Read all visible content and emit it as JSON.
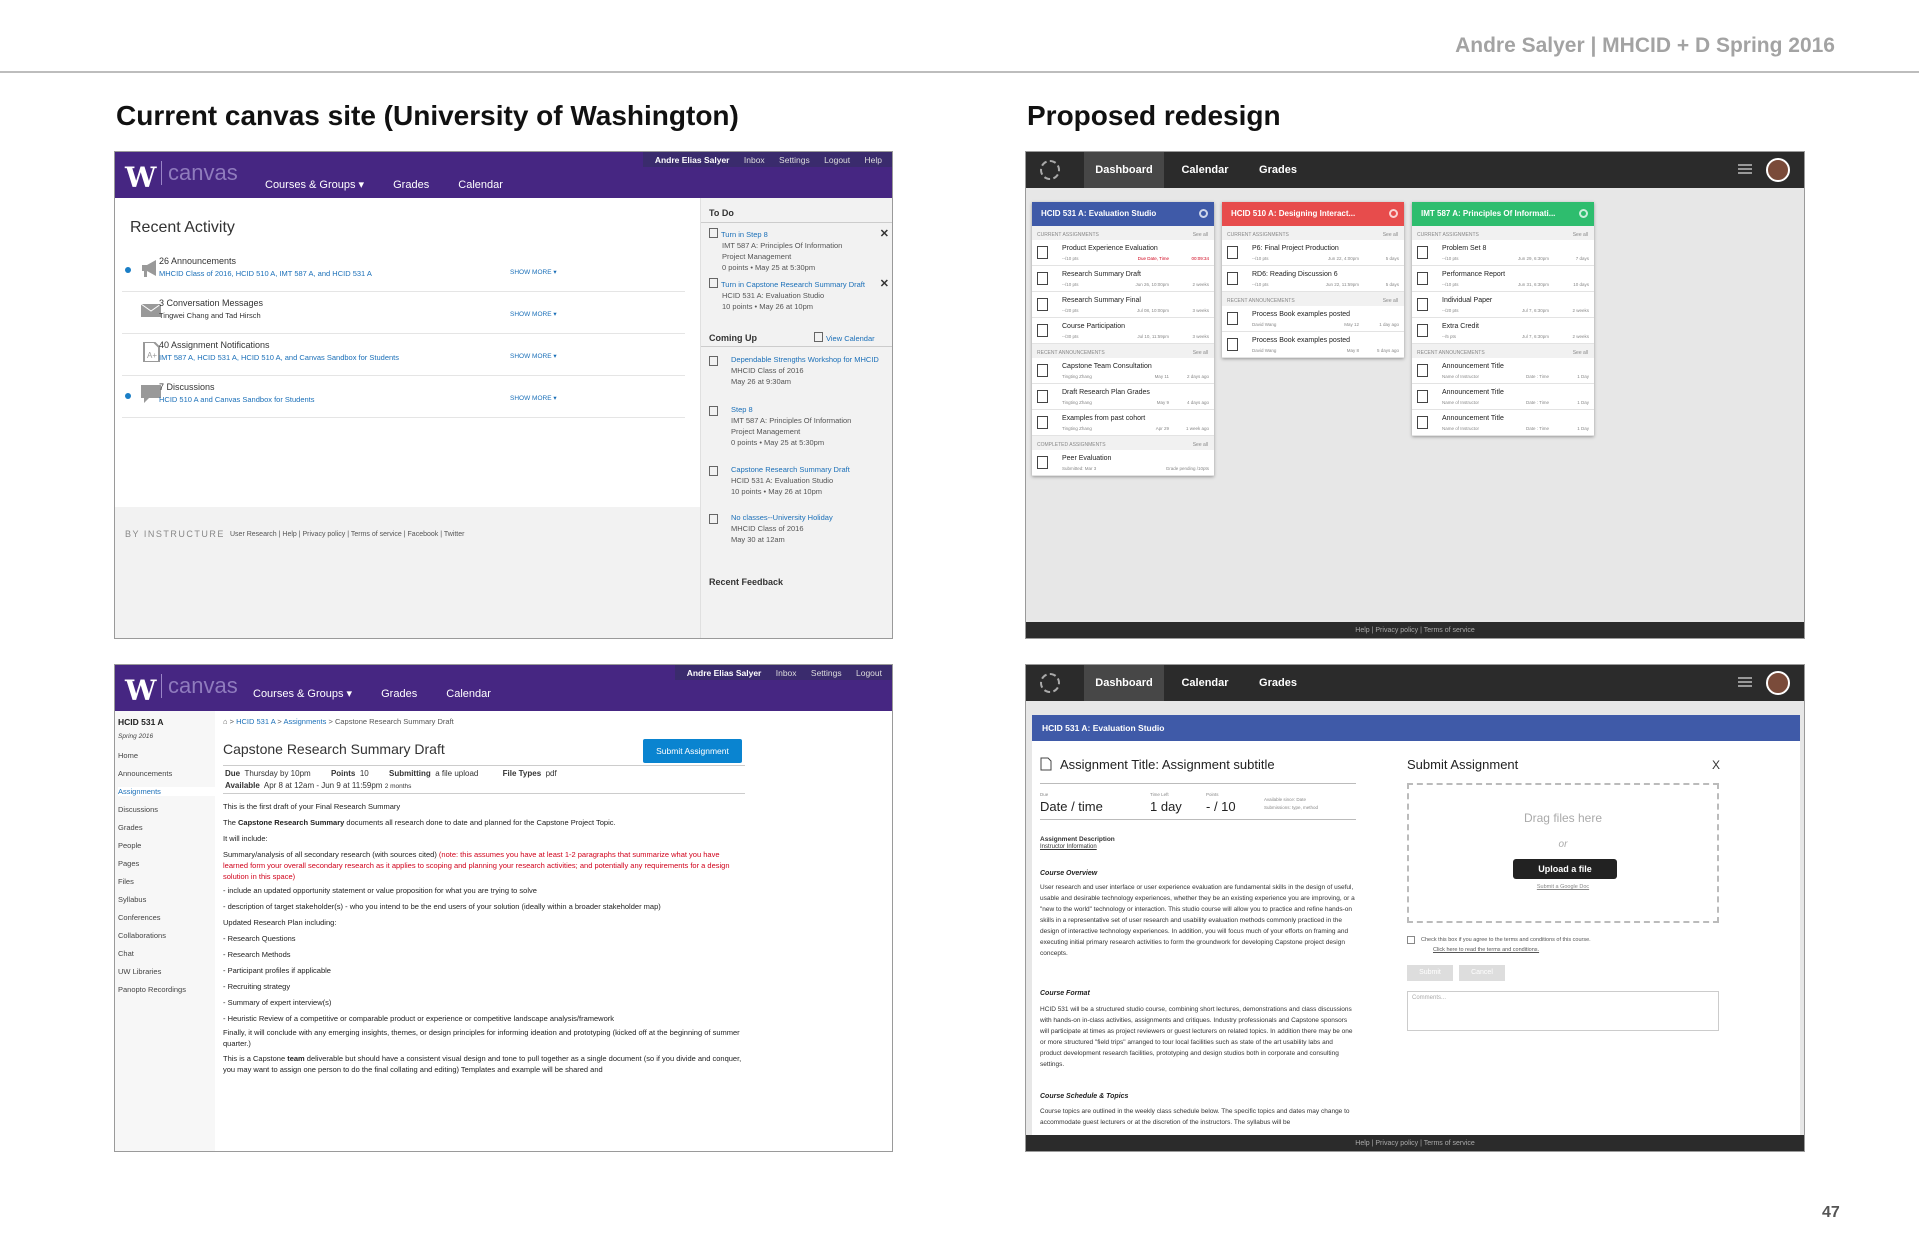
{
  "slide": {
    "author": "Andre Salyer | MHCID + D Spring 2016",
    "left_title": "Current canvas site (University of Washington)",
    "right_title": "Proposed redesign",
    "page_number": "47"
  },
  "canvas": {
    "logo": "W",
    "brand": "canvas",
    "user": "Andre Elias Salyer",
    "util1": [
      "Inbox",
      "Settings",
      "Logout",
      "Help"
    ],
    "util2": [
      "Inbox",
      "Settings",
      "Logout"
    ],
    "nav": [
      "Courses & Groups ▾",
      "Grades",
      "Calendar"
    ]
  },
  "dash": {
    "recent_title": "Recent Activity",
    "activities": [
      {
        "head": "26 Announcements",
        "sub": "MHCID Class of 2016, HCID 510 A, IMT 587 A, and HCID 531 A",
        "more": "SHOW MORE ▾"
      },
      {
        "head": "3 Conversation Messages",
        "sub": "Tingwei Chang and Tad Hirsch",
        "more": "SHOW MORE ▾"
      },
      {
        "head": "40 Assignment Notifications",
        "sub": "IMT 587 A, HCID 531 A, HCID 510 A, and Canvas Sandbox for Students",
        "more": "SHOW MORE ▾"
      },
      {
        "head": "7 Discussions",
        "sub": "HCID 510 A and Canvas Sandbox for Students",
        "more": "SHOW MORE ▾"
      }
    ],
    "footer_brand": "BY INSTRUCTURE",
    "footer_links": "User Research | Help | Privacy policy | Terms of service | Facebook | Twitter",
    "todo_title": "To Do",
    "todo": [
      {
        "link": "Turn in Step 8",
        "l1": "IMT 587 A: Principles Of Information",
        "l2": "Project Management",
        "l3": "0 points • May 25 at 5:30pm"
      },
      {
        "link": "Turn in Capstone Research Summary Draft",
        "l1": "HCID 531 A: Evaluation Studio",
        "l2": "10 points • May 26 at 10pm",
        "l3": ""
      }
    ],
    "coming_title": "Coming Up",
    "view_calendar": "View Calendar",
    "coming": [
      {
        "link": "Dependable Strengths Workshop for MHCID",
        "l1": "MHCID Class of 2016",
        "l2": "May 26 at 9:30am",
        "l3": ""
      },
      {
        "link": "Step 8",
        "l1": "IMT 587 A: Principles Of Information",
        "l2": "Project Management",
        "l3": "0 points • May 25 at 5:30pm"
      },
      {
        "link": "Capstone Research Summary Draft",
        "l1": "HCID 531 A: Evaluation Studio",
        "l2": "10 points • May 26 at 10pm",
        "l3": ""
      },
      {
        "link": "No classes--University Holiday",
        "l1": "MHCID Class of 2016",
        "l2": "May 30 at 12am",
        "l3": ""
      }
    ],
    "recent_feedback": "Recent Feedback"
  },
  "assignment": {
    "sidebar": [
      "HCID 531 A",
      "Spring 2016",
      "Home",
      "Announcements",
      "Assignments",
      "Discussions",
      "Grades",
      "People",
      "Pages",
      "Files",
      "Syllabus",
      "Conferences",
      "Collaborations",
      "Chat",
      "UW Libraries",
      "Panopto Recordings"
    ],
    "breadcrumb": [
      "HCID 531 A",
      "Assignments",
      "Capstone Research Summary Draft"
    ],
    "title": "Capstone Research Summary Draft",
    "submit": "Submit Assignment",
    "due_label": "Due",
    "due": "Thursday by 10pm",
    "points_label": "Points",
    "points": "10",
    "submitting_label": "Submitting",
    "submitting": "a file upload",
    "filetypes_label": "File Types",
    "filetypes": "pdf",
    "available_label": "Available",
    "available": "Apr 8 at 12am - Jun 9 at 11:59pm",
    "available_suffix": "2 months",
    "p1": "This is the first draft of your Final Research Summary",
    "p2a": "The ",
    "p2b": "Capstone Research Summary",
    "p2c": " documents all research done to date and planned for the Capstone Project Topic.",
    "p3": "It will include:",
    "p4a": "Summary/analysis of all secondary research (with sources cited) ",
    "p4b": "(note: this assumes you have at least 1-2 paragraphs that summarize what you have learned form your overall secondary research as it applies to scoping and planning your research activities; and potentially any requirements for a design solution in this space)",
    "p5": "- include an updated opportunity statement or value proposition for what you are trying to solve",
    "p6": "- description of target stakeholder(s) - who you intend to be the end users of your solution (ideally within a broader stakeholder map)",
    "p7": "Updated Research Plan including:",
    "list": [
      "- Research Questions",
      "- Research Methods",
      "- Participant profiles if applicable",
      "- Recruiting strategy",
      "- Summary of  expert interview(s)",
      "- Heuristic Review of a competitive or comparable product or experience or competitive landscape analysis/framework"
    ],
    "p8": "Finally, it will conclude with any emerging insights, themes, or design principles for informing ideation and prototyping (kicked off at the beginning of summer quarter.)",
    "p9a": "This is a Capstone ",
    "p9b": "team",
    "p9c": " deliverable but should have a consistent visual design and tone to pull together as a single document (so if you divide and conquer, you may want to assign one person to do the final collating and editing) Templates and example will be shared and"
  },
  "redesign": {
    "tabs": [
      "Dashboard",
      "Calendar",
      "Grades"
    ],
    "footer": "Help  |  Privacy policy  |  Terms of service",
    "cards": [
      {
        "title": "HCID 531 A: Evaluation Studio",
        "color": "#3f5aa8",
        "sections": [
          {
            "name": "CURRENT ASSIGNMENTS",
            "see": "See all",
            "rows": [
              {
                "t": "Product Experience Evaluation",
                "m": "--/10 pts",
                "d": "Due Date, Time",
                "r": "00:09:34",
                "red": true
              },
              {
                "t": "Research Summary Draft",
                "m": "--/10 pts",
                "d": "Jun 26, 10:00pm",
                "r": "2 weeks",
                "red": false
              },
              {
                "t": "Research Summary Final",
                "m": "--/20 pts",
                "d": "Jul 08, 10:00pm",
                "r": "3 weeks",
                "red": false
              },
              {
                "t": "Course Participation",
                "m": "--/30 pts",
                "d": "Jul 10, 11:59pm",
                "r": "3 weeks",
                "red": false
              }
            ]
          },
          {
            "name": "RECENT ANNOUNCEMENTS",
            "see": "See all",
            "rows": [
              {
                "t": "Capstone Team Consultation",
                "m": "Tingting Zhang",
                "d": "May 11",
                "r": "2 days ago",
                "red": false
              },
              {
                "t": "Draft Research Plan Grades",
                "m": "Tingting Zhang",
                "d": "May 9",
                "r": "4 days ago",
                "red": false
              },
              {
                "t": "Examples from past cohort",
                "m": "Tingting Zhang",
                "d": "Apr 29",
                "r": "1 week ago",
                "red": false
              }
            ]
          },
          {
            "name": "COMPLETED ASSIGNMENTS",
            "see": "See all",
            "rows": [
              {
                "t": "Peer Evaluation",
                "m": "Submitted: Mar 3",
                "d": "",
                "r": "Grade pending /10pts",
                "red": false
              }
            ]
          }
        ]
      },
      {
        "title": "HCID 510 A: Designing Interact...",
        "color": "#e74c4c",
        "sections": [
          {
            "name": "CURRENT ASSIGNMENTS",
            "see": "See all",
            "rows": [
              {
                "t": "P6: Final Project Production",
                "m": "--/10 pts",
                "d": "Jun 22, 4:00pm",
                "r": "5 days",
                "red": false
              },
              {
                "t": "RD6: Reading Discussion 6",
                "m": "--/10 pts",
                "d": "Jun 22, 11:59pm",
                "r": "5 days",
                "red": false
              }
            ]
          },
          {
            "name": "RECENT ANNOUNCEMENTS",
            "see": "See all",
            "rows": [
              {
                "t": "Process Book examples posted",
                "m": "David Wang",
                "d": "May 12",
                "r": "1 day ago",
                "red": false
              },
              {
                "t": "Process Book examples posted",
                "m": "David Wang",
                "d": "May 8",
                "r": "5 days ago",
                "red": false
              }
            ]
          }
        ]
      },
      {
        "title": "IMT 587 A: Principles Of Informati...",
        "color": "#2ebd6e",
        "sections": [
          {
            "name": "CURRENT ASSIGNMENTS",
            "see": "See all",
            "rows": [
              {
                "t": "Problem Set 8",
                "m": "--/10 pts",
                "d": "Jun 29, 6:30pm",
                "r": "7 days",
                "red": false
              },
              {
                "t": "Performance Report",
                "m": "--/10 pts",
                "d": "Jun 31, 6:30pm",
                "r": "10 days",
                "red": false
              },
              {
                "t": "Individual Paper",
                "m": "--/20 pts",
                "d": "Jul 7, 6:30pm",
                "r": "2 weeks",
                "red": false
              },
              {
                "t": "Extra Credit",
                "m": "--/5 pts",
                "d": "Jul 7, 6:30pm",
                "r": "2 weeks",
                "red": false
              }
            ]
          },
          {
            "name": "RECENT ANNOUNCEMENTS",
            "see": "See all",
            "rows": [
              {
                "t": "Announcement Title",
                "m": "Name of Instructor",
                "d": "Date : Time",
                "r": "1 Day",
                "red": false
              },
              {
                "t": "Announcement Title",
                "m": "Name of Instructor",
                "d": "Date : Time",
                "r": "1 Day",
                "red": false
              },
              {
                "t": "Announcement Title",
                "m": "Name of Instructor",
                "d": "Date : Time",
                "r": "1 Day",
                "red": false
              }
            ]
          }
        ]
      }
    ],
    "detail": {
      "course": "HCID 531 A: Evaluation Studio",
      "title": "Assignment Title: Assignment subtitle",
      "due_lbl": "Due",
      "due": "Date / time",
      "left_lbl": "Time Left",
      "left": "1 day",
      "pts_lbl": "Points",
      "pts": "- / 10",
      "avail": "Available since: Date",
      "subs": "Submissions: type, method",
      "desc_lbl": "Assignment Description",
      "instructor": "Instructor Information",
      "overview_h": "Course Overview",
      "overview": "User research and user interface or user experience evaluation are fundamental skills in the design of useful, usable and desirable technology experiences, whether they be an existing experience you are improving, or a \"new to the world\" technology or interaction. This studio course will allow you to practice and refine hands-on skills in a representative set of user research and usability evaluation methods commonly practiced in the design of interactive technology experiences. In addition, you will focus much of your efforts on framing and executing initial primary research activities to form the groundwork for developing Capstone project design concepts.",
      "format_h": "Course Format",
      "format": "HCID 531 will be a structured studio course, combining short lectures, demonstrations and class discussions with hands-on in-class activities, assignments and critiques. Industry professionals and Capstone sponsors will participate at times as project reviewers or guest lecturers on related topics. In addition there may be one or more structured \"field trips\" arranged to tour local facilities such as state of the art usability labs and product development research facilities, prototyping and design studios both in corporate and consulting settings.",
      "sched_h": "Course Schedule & Topics",
      "sched": "Course topics are outlined in the weekly class schedule below. The specific topics and dates may change to accommodate guest lecturers or at the discretion of the instructors. The syllabus will be",
      "sub_title": "Submit Assignment",
      "close": "X",
      "drag": "Drag files here",
      "or": "or",
      "upload": "Upload a file",
      "gdoc": "Submit a Google Doc",
      "chk1": "Check this box if you agree to the terms and conditions of this course.",
      "chk2": "Click here to read the terms and conditions.",
      "submit": "Submit",
      "cancel": "Cancel",
      "comments": "Comments..."
    }
  }
}
